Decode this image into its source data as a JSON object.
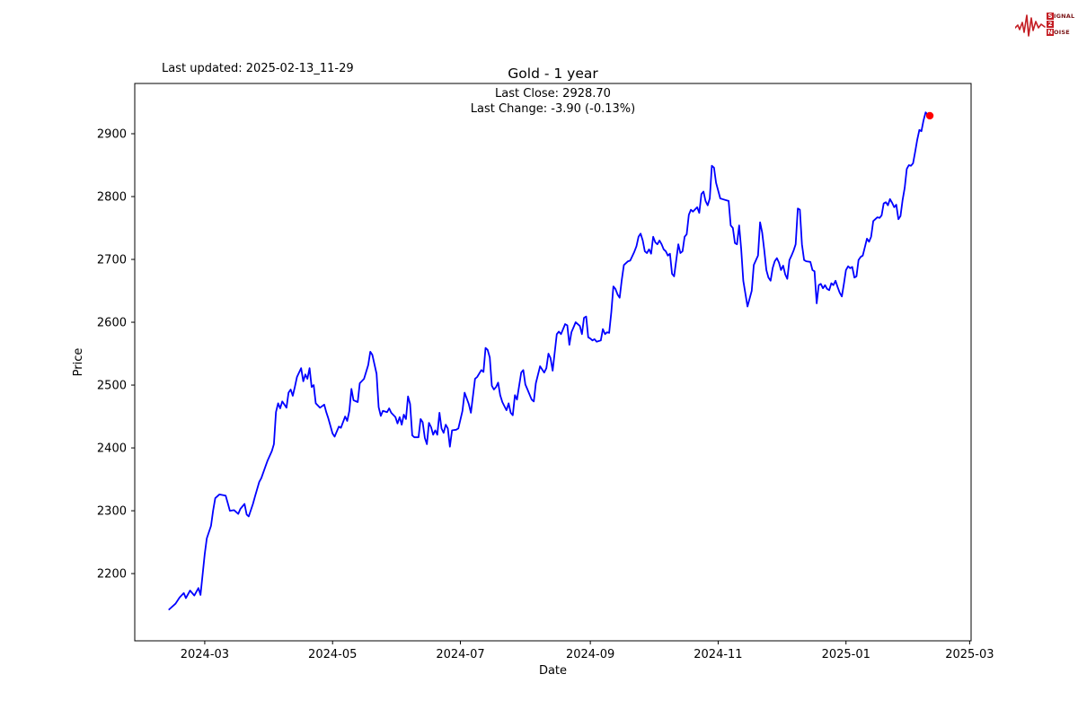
{
  "header": {
    "last_updated": "Last updated: 2025-02-13_11-29"
  },
  "logo": {
    "waveform_color": "#c41e24",
    "word1_initial": "S",
    "word1_rest": "IGNAL",
    "word2": "2",
    "word3_initial": "N",
    "word3_rest": "OISE"
  },
  "chart": {
    "title": "Gold - 1 year",
    "subtitle_line1": "Last Close: 2928.70",
    "subtitle_line2": "Last Change: -3.90 (-0.13%)",
    "xlabel": "Date",
    "ylabel": "Price",
    "line_color": "#0000ff",
    "marker_color": "#ff0000",
    "frame_color": "#000000"
  },
  "chart_data": {
    "type": "line",
    "title": "Gold - 1 year",
    "xlabel": "Date",
    "ylabel": "Price",
    "x_unit": "days since 2024-02-13",
    "xlim": [
      -16.4,
      382.7
    ],
    "ylim": [
      2093,
      2980
    ],
    "grid": false,
    "legend": "none",
    "x_ticks": [
      {
        "label": "2024-03",
        "d": 17
      },
      {
        "label": "2024-05",
        "d": 78
      },
      {
        "label": "2024-07",
        "d": 139
      },
      {
        "label": "2024-09",
        "d": 201
      },
      {
        "label": "2024-11",
        "d": 262
      },
      {
        "label": "2025-01",
        "d": 323
      },
      {
        "label": "2025-03",
        "d": 382
      }
    ],
    "y_ticks": [
      2200,
      2300,
      2400,
      2500,
      2600,
      2700,
      2800,
      2900
    ],
    "last_close": 2928.7,
    "last_change": -3.9,
    "last_change_pct": "-0.13%",
    "series": [
      {
        "name": "Gold",
        "color": "#0000ff",
        "points": [
          [
            0,
            2143
          ],
          [
            3,
            2152
          ],
          [
            5,
            2162
          ],
          [
            7,
            2169
          ],
          [
            8,
            2161
          ],
          [
            10,
            2173
          ],
          [
            12,
            2165
          ],
          [
            14,
            2177
          ],
          [
            15,
            2166
          ],
          [
            17,
            2231
          ],
          [
            18,
            2256
          ],
          [
            20,
            2276
          ],
          [
            21,
            2300
          ],
          [
            22,
            2320
          ],
          [
            24,
            2326
          ],
          [
            27,
            2324
          ],
          [
            28,
            2312
          ],
          [
            29,
            2300
          ],
          [
            31,
            2301
          ],
          [
            33,
            2295
          ],
          [
            34,
            2303
          ],
          [
            36,
            2311
          ],
          [
            37,
            2294
          ],
          [
            38,
            2291
          ],
          [
            40,
            2311
          ],
          [
            41,
            2323
          ],
          [
            43,
            2346
          ],
          [
            44,
            2352
          ],
          [
            46,
            2371
          ],
          [
            47,
            2380
          ],
          [
            49,
            2395
          ],
          [
            50,
            2406
          ],
          [
            51,
            2457
          ],
          [
            52,
            2471
          ],
          [
            53,
            2463
          ],
          [
            54,
            2474
          ],
          [
            56,
            2464
          ],
          [
            57,
            2488
          ],
          [
            58,
            2493
          ],
          [
            59,
            2483
          ],
          [
            60,
            2497
          ],
          [
            61,
            2513
          ],
          [
            63,
            2527
          ],
          [
            64,
            2506
          ],
          [
            65,
            2517
          ],
          [
            66,
            2510
          ],
          [
            67,
            2527
          ],
          [
            68,
            2497
          ],
          [
            69,
            2500
          ],
          [
            70,
            2471
          ],
          [
            72,
            2464
          ],
          [
            74,
            2469
          ],
          [
            75,
            2457
          ],
          [
            76,
            2447
          ],
          [
            78,
            2423
          ],
          [
            79,
            2418
          ],
          [
            81,
            2434
          ],
          [
            82,
            2432
          ],
          [
            84,
            2450
          ],
          [
            85,
            2443
          ],
          [
            86,
            2459
          ],
          [
            87,
            2494
          ],
          [
            88,
            2476
          ],
          [
            90,
            2473
          ],
          [
            91,
            2503
          ],
          [
            93,
            2510
          ],
          [
            95,
            2532
          ],
          [
            96,
            2553
          ],
          [
            97,
            2548
          ],
          [
            99,
            2518
          ],
          [
            100,
            2465
          ],
          [
            101,
            2451
          ],
          [
            102,
            2459
          ],
          [
            104,
            2457
          ],
          [
            105,
            2463
          ],
          [
            106,
            2456
          ],
          [
            108,
            2449
          ],
          [
            109,
            2439
          ],
          [
            110,
            2449
          ],
          [
            111,
            2437
          ],
          [
            112,
            2453
          ],
          [
            113,
            2446
          ],
          [
            114,
            2482
          ],
          [
            115,
            2470
          ],
          [
            116,
            2420
          ],
          [
            117,
            2417
          ],
          [
            119,
            2417
          ],
          [
            120,
            2446
          ],
          [
            121,
            2441
          ],
          [
            122,
            2416
          ],
          [
            123,
            2406
          ],
          [
            124,
            2440
          ],
          [
            125,
            2433
          ],
          [
            126,
            2421
          ],
          [
            127,
            2428
          ],
          [
            128,
            2421
          ],
          [
            129,
            2456
          ],
          [
            130,
            2431
          ],
          [
            131,
            2424
          ],
          [
            132,
            2437
          ],
          [
            133,
            2431
          ],
          [
            134,
            2402
          ],
          [
            135,
            2428
          ],
          [
            137,
            2429
          ],
          [
            138,
            2431
          ],
          [
            140,
            2459
          ],
          [
            141,
            2488
          ],
          [
            143,
            2470
          ],
          [
            144,
            2456
          ],
          [
            146,
            2510
          ],
          [
            147,
            2513
          ],
          [
            149,
            2524
          ],
          [
            150,
            2521
          ],
          [
            151,
            2559
          ],
          [
            152,
            2556
          ],
          [
            153,
            2544
          ],
          [
            154,
            2499
          ],
          [
            155,
            2493
          ],
          [
            156,
            2497
          ],
          [
            157,
            2504
          ],
          [
            158,
            2484
          ],
          [
            159,
            2473
          ],
          [
            161,
            2460
          ],
          [
            162,
            2471
          ],
          [
            163,
            2456
          ],
          [
            164,
            2452
          ],
          [
            165,
            2484
          ],
          [
            166,
            2477
          ],
          [
            168,
            2520
          ],
          [
            169,
            2524
          ],
          [
            170,
            2501
          ],
          [
            171,
            2493
          ],
          [
            173,
            2477
          ],
          [
            174,
            2474
          ],
          [
            175,
            2503
          ],
          [
            177,
            2530
          ],
          [
            179,
            2520
          ],
          [
            180,
            2527
          ],
          [
            181,
            2550
          ],
          [
            182,
            2543
          ],
          [
            183,
            2523
          ],
          [
            185,
            2581
          ],
          [
            186,
            2585
          ],
          [
            187,
            2581
          ],
          [
            189,
            2597
          ],
          [
            190,
            2595
          ],
          [
            191,
            2564
          ],
          [
            192,
            2584
          ],
          [
            193,
            2592
          ],
          [
            194,
            2600
          ],
          [
            195,
            2597
          ],
          [
            196,
            2594
          ],
          [
            197,
            2581
          ],
          [
            198,
            2607
          ],
          [
            199,
            2609
          ],
          [
            200,
            2576
          ],
          [
            201,
            2574
          ],
          [
            202,
            2571
          ],
          [
            203,
            2573
          ],
          [
            204,
            2569
          ],
          [
            205,
            2570
          ],
          [
            206,
            2571
          ],
          [
            207,
            2589
          ],
          [
            208,
            2581
          ],
          [
            209,
            2584
          ],
          [
            210,
            2583
          ],
          [
            211,
            2616
          ],
          [
            212,
            2657
          ],
          [
            213,
            2653
          ],
          [
            214,
            2644
          ],
          [
            215,
            2639
          ],
          [
            216,
            2667
          ],
          [
            217,
            2691
          ],
          [
            218,
            2694
          ],
          [
            219,
            2697
          ],
          [
            220,
            2698
          ],
          [
            222,
            2712
          ],
          [
            223,
            2721
          ],
          [
            224,
            2736
          ],
          [
            225,
            2741
          ],
          [
            226,
            2730
          ],
          [
            227,
            2713
          ],
          [
            228,
            2710
          ],
          [
            229,
            2716
          ],
          [
            230,
            2709
          ],
          [
            231,
            2736
          ],
          [
            232,
            2727
          ],
          [
            233,
            2724
          ],
          [
            234,
            2730
          ],
          [
            235,
            2724
          ],
          [
            236,
            2716
          ],
          [
            237,
            2713
          ],
          [
            238,
            2706
          ],
          [
            239,
            2709
          ],
          [
            240,
            2677
          ],
          [
            241,
            2673
          ],
          [
            243,
            2724
          ],
          [
            244,
            2710
          ],
          [
            245,
            2713
          ],
          [
            246,
            2736
          ],
          [
            247,
            2740
          ],
          [
            248,
            2771
          ],
          [
            249,
            2779
          ],
          [
            250,
            2776
          ],
          [
            252,
            2783
          ],
          [
            253,
            2774
          ],
          [
            254,
            2804
          ],
          [
            255,
            2808
          ],
          [
            256,
            2793
          ],
          [
            257,
            2786
          ],
          [
            258,
            2797
          ],
          [
            259,
            2849
          ],
          [
            260,
            2846
          ],
          [
            261,
            2822
          ],
          [
            263,
            2797
          ],
          [
            264,
            2796
          ],
          [
            266,
            2794
          ],
          [
            267,
            2793
          ],
          [
            268,
            2754
          ],
          [
            269,
            2750
          ],
          [
            270,
            2726
          ],
          [
            271,
            2724
          ],
          [
            272,
            2754
          ],
          [
            273,
            2716
          ],
          [
            274,
            2666
          ],
          [
            276,
            2625
          ],
          [
            278,
            2650
          ],
          [
            279,
            2691
          ],
          [
            281,
            2706
          ],
          [
            282,
            2759
          ],
          [
            283,
            2743
          ],
          [
            284,
            2714
          ],
          [
            285,
            2683
          ],
          [
            286,
            2671
          ],
          [
            287,
            2666
          ],
          [
            288,
            2686
          ],
          [
            289,
            2697
          ],
          [
            290,
            2702
          ],
          [
            291,
            2695
          ],
          [
            292,
            2683
          ],
          [
            293,
            2690
          ],
          [
            294,
            2676
          ],
          [
            295,
            2669
          ],
          [
            296,
            2699
          ],
          [
            297,
            2706
          ],
          [
            298,
            2714
          ],
          [
            299,
            2724
          ],
          [
            300,
            2781
          ],
          [
            301,
            2779
          ],
          [
            302,
            2724
          ],
          [
            303,
            2699
          ],
          [
            304,
            2697
          ],
          [
            306,
            2696
          ],
          [
            307,
            2683
          ],
          [
            308,
            2681
          ],
          [
            309,
            2630
          ],
          [
            310,
            2659
          ],
          [
            311,
            2661
          ],
          [
            312,
            2654
          ],
          [
            313,
            2659
          ],
          [
            314,
            2653
          ],
          [
            315,
            2651
          ],
          [
            316,
            2662
          ],
          [
            317,
            2659
          ],
          [
            318,
            2666
          ],
          [
            319,
            2656
          ],
          [
            320,
            2647
          ],
          [
            321,
            2641
          ],
          [
            322,
            2661
          ],
          [
            323,
            2683
          ],
          [
            324,
            2689
          ],
          [
            325,
            2686
          ],
          [
            326,
            2688
          ],
          [
            327,
            2671
          ],
          [
            328,
            2673
          ],
          [
            329,
            2699
          ],
          [
            330,
            2704
          ],
          [
            331,
            2706
          ],
          [
            333,
            2733
          ],
          [
            334,
            2728
          ],
          [
            335,
            2736
          ],
          [
            336,
            2761
          ],
          [
            337,
            2764
          ],
          [
            338,
            2767
          ],
          [
            339,
            2766
          ],
          [
            340,
            2770
          ],
          [
            341,
            2789
          ],
          [
            342,
            2791
          ],
          [
            343,
            2786
          ],
          [
            344,
            2796
          ],
          [
            345,
            2790
          ],
          [
            346,
            2783
          ],
          [
            347,
            2787
          ],
          [
            348,
            2764
          ],
          [
            349,
            2769
          ],
          [
            350,
            2794
          ],
          [
            351,
            2814
          ],
          [
            352,
            2844
          ],
          [
            353,
            2850
          ],
          [
            354,
            2849
          ],
          [
            355,
            2853
          ],
          [
            356,
            2871
          ],
          [
            357,
            2890
          ],
          [
            358,
            2906
          ],
          [
            359,
            2904
          ],
          [
            360,
            2921
          ],
          [
            361,
            2934
          ],
          [
            362,
            2930
          ],
          [
            363,
            2928.7
          ]
        ]
      }
    ],
    "end_marker": {
      "color": "#ff0000",
      "point": [
        363,
        2928.7
      ]
    }
  }
}
